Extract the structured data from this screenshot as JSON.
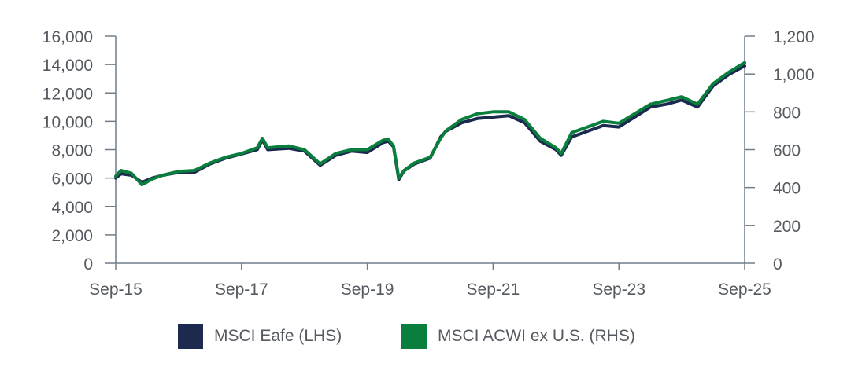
{
  "chart_data": {
    "type": "line",
    "title": "",
    "x_ticks": [
      "Sep-15",
      "Sep-17",
      "Sep-19",
      "Sep-21",
      "Sep-23",
      "Sep-25"
    ],
    "y_left": {
      "label": "",
      "min": 0,
      "max": 16000,
      "ticks": [
        "0",
        "2,000",
        "4,000",
        "6,000",
        "8,000",
        "10,000",
        "12,000",
        "14,000",
        "16,000"
      ]
    },
    "y_right": {
      "label": "",
      "min": 0,
      "max": 1200,
      "ticks": [
        "0",
        "200",
        "400",
        "600",
        "800",
        "1,000",
        "1,200"
      ]
    },
    "grid": false,
    "legend_position": "bottom",
    "series": [
      {
        "name": "MSCI Eafe (LHS)",
        "axis": "left",
        "color": "#1b2a4e",
        "x": [
          "2015-09",
          "2015-10",
          "2015-12",
          "2016-02",
          "2016-04",
          "2016-06",
          "2016-09",
          "2016-12",
          "2017-03",
          "2017-06",
          "2017-09",
          "2017-12",
          "2018-01",
          "2018-02",
          "2018-06",
          "2018-09",
          "2018-12",
          "2019-03",
          "2019-06",
          "2019-09",
          "2019-12",
          "2020-01",
          "2020-02",
          "2020-03",
          "2020-04",
          "2020-06",
          "2020-09",
          "2020-11",
          "2020-12",
          "2021-03",
          "2021-06",
          "2021-09",
          "2021-12",
          "2022-03",
          "2022-06",
          "2022-09",
          "2022-10",
          "2022-12",
          "2023-03",
          "2023-06",
          "2023-09",
          "2023-12",
          "2024-03",
          "2024-06",
          "2024-09",
          "2024-12",
          "2025-03",
          "2025-06",
          "2025-09"
        ],
        "values": [
          6000,
          6300,
          6200,
          5700,
          6000,
          6200,
          6400,
          6400,
          7000,
          7400,
          7700,
          8000,
          8700,
          8000,
          8100,
          7900,
          6900,
          7600,
          7900,
          7800,
          8500,
          8600,
          8200,
          5900,
          6500,
          7000,
          7400,
          8900,
          9300,
          9900,
          10200,
          10300,
          10400,
          9900,
          8600,
          8000,
          7600,
          8900,
          9300,
          9700,
          9600,
          10300,
          11000,
          11200,
          11500,
          11000,
          12500,
          13300,
          13900
        ]
      },
      {
        "name": "MSCI ACWI ex U.S. (RHS)",
        "axis": "right",
        "color": "#0a7e3c",
        "x": [
          "2015-09",
          "2015-10",
          "2015-12",
          "2016-02",
          "2016-04",
          "2016-06",
          "2016-09",
          "2016-12",
          "2017-03",
          "2017-06",
          "2017-09",
          "2017-12",
          "2018-01",
          "2018-02",
          "2018-06",
          "2018-09",
          "2018-12",
          "2019-03",
          "2019-06",
          "2019-09",
          "2019-12",
          "2020-01",
          "2020-02",
          "2020-03",
          "2020-04",
          "2020-06",
          "2020-09",
          "2020-11",
          "2020-12",
          "2021-03",
          "2021-06",
          "2021-09",
          "2021-12",
          "2022-03",
          "2022-06",
          "2022-09",
          "2022-10",
          "2022-12",
          "2023-03",
          "2023-06",
          "2023-09",
          "2023-12",
          "2024-03",
          "2024-06",
          "2024-09",
          "2024-12",
          "2025-03",
          "2025-06",
          "2025-09"
        ],
        "values": [
          460,
          490,
          475,
          415,
          445,
          465,
          485,
          490,
          530,
          560,
          580,
          610,
          660,
          610,
          620,
          600,
          525,
          580,
          600,
          600,
          650,
          655,
          620,
          450,
          490,
          530,
          560,
          660,
          700,
          760,
          790,
          800,
          800,
          760,
          660,
          610,
          580,
          690,
          720,
          750,
          740,
          790,
          840,
          860,
          880,
          840,
          950,
          1010,
          1060
        ]
      }
    ]
  }
}
